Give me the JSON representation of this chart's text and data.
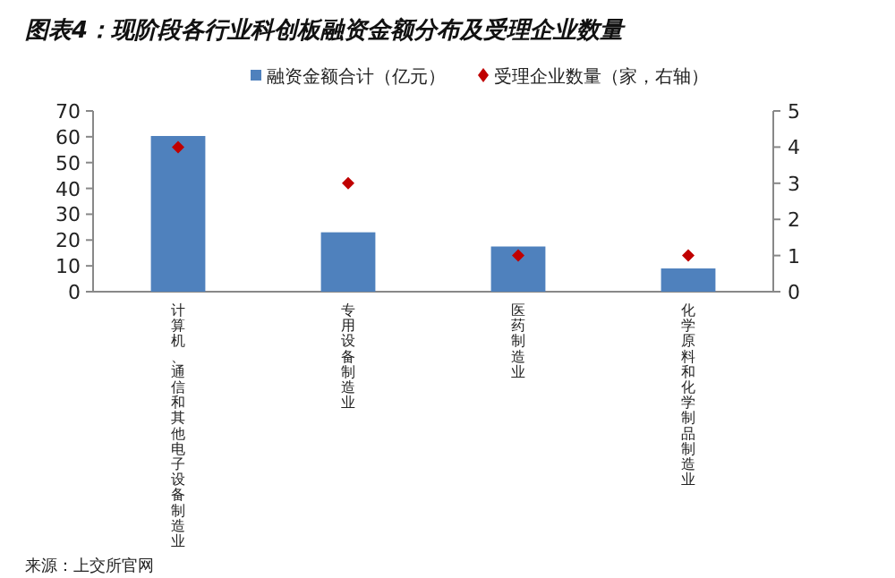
{
  "chart_data": {
    "type": "bar",
    "title": "图表4：现阶段各行业科创板融资金额分布及受理企业数量",
    "categories": [
      "计算机、通信和其他电子设备制造业",
      "专用设备制造业",
      "医药制造业",
      "化学原料和化学制品制造业"
    ],
    "series": [
      {
        "name": "融资金额合计（亿元）",
        "color": "#4f81bd",
        "values": [
          60.3,
          23,
          17.5,
          9
        ]
      },
      {
        "name": "受理企业数量（家，右轴）",
        "type": "scatter",
        "axis": "y2",
        "color": "#c00000",
        "marker": "diamond",
        "values": [
          4,
          3,
          1,
          1
        ]
      }
    ],
    "ylim": [
      0,
      70
    ],
    "yticks": [
      0,
      10,
      20,
      30,
      40,
      50,
      60,
      70
    ],
    "y2lim": [
      0,
      5
    ],
    "y2ticks": [
      0,
      1,
      2,
      3,
      4,
      5
    ],
    "legend": "top",
    "grid": false,
    "annotations": [
      "来源：上交所官网"
    ]
  }
}
